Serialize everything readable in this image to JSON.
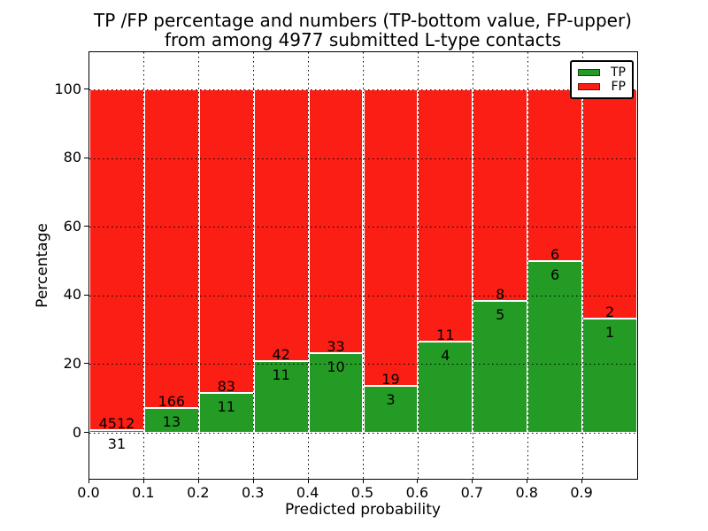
{
  "title": {
    "line1": "TP /FP percentage and numbers (TP-bottom value, FP-upper)",
    "line2": "from among 4977 submitted L-type contacts"
  },
  "y_axis": {
    "label": "Percentage",
    "ticks": [
      "0",
      "20",
      "40",
      "60",
      "80",
      "100"
    ]
  },
  "x_axis": {
    "label": "Predicted probability",
    "ticks": [
      "0.0",
      "0.1",
      "0.2",
      "0.3",
      "0.4",
      "0.5",
      "0.6",
      "0.7",
      "0.8",
      "0.9"
    ]
  },
  "legend": {
    "items": [
      {
        "label": "TP",
        "color": "#249b24"
      },
      {
        "label": "FP",
        "color": "#fa1e14"
      }
    ]
  },
  "colors": {
    "tp": "#249b24",
    "fp": "#fa1e14",
    "grid": "#000000",
    "background": "#ffffff",
    "spine": "#000000"
  },
  "chart_data": {
    "type": "bar",
    "stacked": true,
    "percent_normalized": true,
    "title": "TP /FP percentage and numbers (TP-bottom value, FP-upper) from among 4977 submitted L-type contacts",
    "xlabel": "Predicted probability",
    "ylabel": "Percentage",
    "total_submitted": 4977,
    "bins": [
      "0.0-0.1",
      "0.1-0.2",
      "0.2-0.3",
      "0.3-0.4",
      "0.4-0.5",
      "0.5-0.6",
      "0.6-0.7",
      "0.7-0.8",
      "0.8-0.9",
      "0.9-1.0"
    ],
    "series": [
      {
        "name": "TP",
        "color": "#249b24",
        "counts": [
          31,
          13,
          11,
          11,
          10,
          3,
          4,
          5,
          6,
          1
        ]
      },
      {
        "name": "FP",
        "color": "#fa1e14",
        "counts": [
          4512,
          166,
          83,
          42,
          33,
          19,
          11,
          8,
          6,
          2
        ]
      }
    ],
    "tp_percent": [
      0.68,
      7.26,
      11.7,
      20.75,
      23.26,
      13.64,
      26.67,
      38.46,
      50.0,
      33.33
    ],
    "yticks": [
      0,
      20,
      40,
      60,
      80,
      100
    ],
    "xticks": [
      0.0,
      0.1,
      0.2,
      0.3,
      0.4,
      0.5,
      0.6,
      0.7,
      0.8,
      0.9
    ],
    "ylim_visible": [
      0,
      100
    ],
    "grid": {
      "style": "dotted",
      "color": "#000000"
    },
    "legend_position": "upper right"
  }
}
